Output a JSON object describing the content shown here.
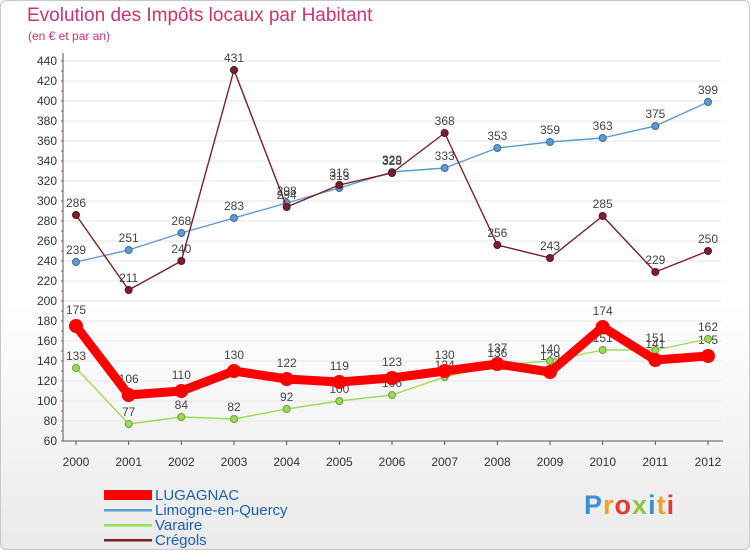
{
  "chart_data": {
    "type": "line",
    "title": "Evolution des Impôts locaux par Habitant",
    "subtitle": "(en € et par an)",
    "xlabel": "",
    "ylabel": "",
    "ylim": [
      60,
      440
    ],
    "yticks": [
      60,
      80,
      100,
      120,
      140,
      160,
      180,
      200,
      220,
      240,
      260,
      280,
      300,
      320,
      340,
      360,
      380,
      400,
      420,
      440
    ],
    "categories": [
      "2000",
      "2001",
      "2002",
      "2003",
      "2004",
      "2005",
      "2006",
      "2007",
      "2008",
      "2009",
      "2010",
      "2011",
      "2012"
    ],
    "grid": "horizontal",
    "legend_position": "bottom-left",
    "series": [
      {
        "name": "LUGAGNAC",
        "color": "#ff0000",
        "values": [
          175,
          106,
          110,
          130,
          122,
          119,
          123,
          130,
          137,
          129,
          174,
          141,
          145
        ]
      },
      {
        "name": "Limogne-en-Quercy",
        "color": "#5b9bd5",
        "values": [
          239,
          251,
          268,
          283,
          298,
          313,
          329,
          333,
          353,
          359,
          363,
          375,
          399
        ]
      },
      {
        "name": "Varaire",
        "color": "#99dd55",
        "values": [
          133,
          77,
          84,
          82,
          92,
          100,
          106,
          124,
          136,
          140,
          151,
          151,
          162
        ]
      },
      {
        "name": "Crégols",
        "color": "#7a1f2b",
        "values": [
          286,
          211,
          240,
          431,
          294,
          316,
          328,
          368,
          256,
          243,
          285,
          229,
          250
        ]
      }
    ]
  },
  "brand": {
    "letters": [
      {
        "char": "P",
        "color": "#3b8fd6"
      },
      {
        "char": "r",
        "color": "#f0a030"
      },
      {
        "char": "o",
        "color": "#e23b2e"
      },
      {
        "char": "x",
        "color": "#8cc63f"
      },
      {
        "char": "i",
        "color": "#3b8fd6"
      },
      {
        "char": "t",
        "color": "#f0a030"
      },
      {
        "char": "i",
        "color": "#e23b2e"
      }
    ]
  }
}
